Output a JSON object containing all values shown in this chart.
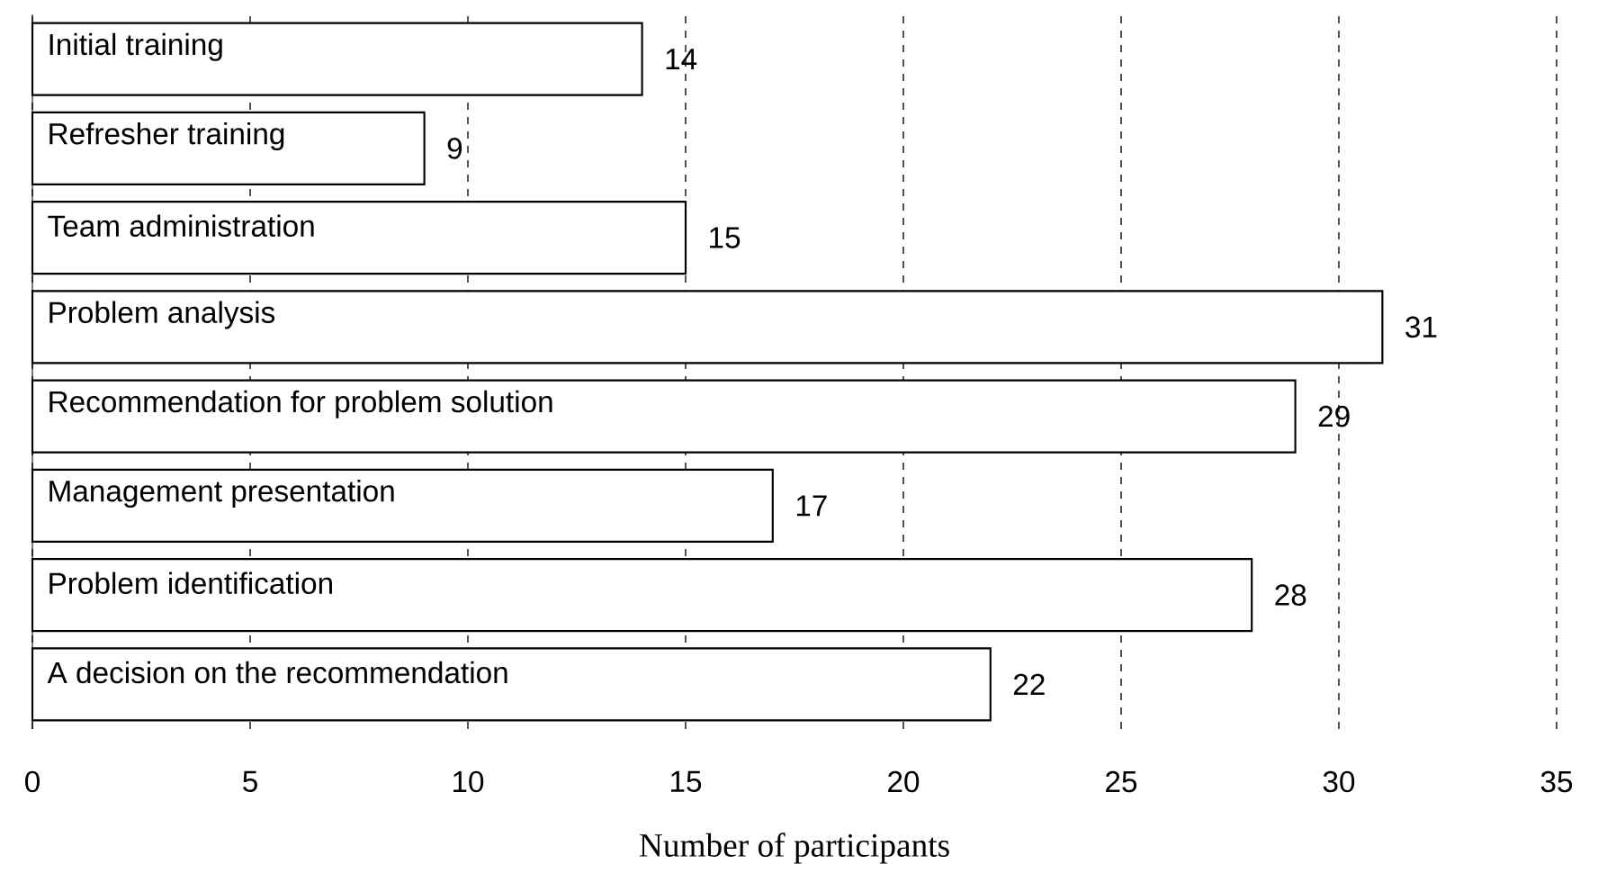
{
  "chart_data": {
    "type": "bar",
    "orientation": "horizontal",
    "xlabel": "Number of participants",
    "categories": [
      "Initial training",
      "Refresher training",
      "Team administration",
      "Problem analysis",
      "Recommendation for problem solution",
      "Management presentation",
      "Problem identification",
      "A decision on the recommendation"
    ],
    "values": [
      14,
      9,
      15,
      31,
      29,
      17,
      28,
      22
    ],
    "color": "#ffffff",
    "xlim": [
      0,
      35
    ],
    "xticks": [
      0,
      5,
      10,
      15,
      20,
      25,
      30,
      35
    ],
    "grid": "x",
    "data_labels": true
  }
}
